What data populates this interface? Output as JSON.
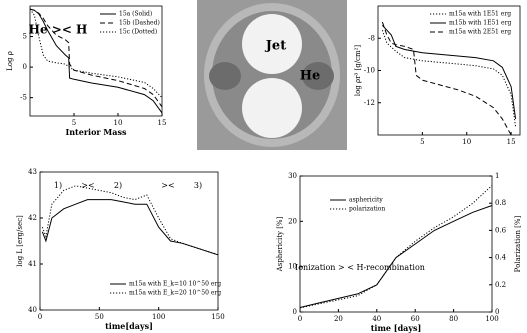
{
  "chart_data": [
    {
      "type": "line",
      "x_label": "Interior Mass",
      "y_label": "Log ρ",
      "xlim": [
        0,
        15
      ],
      "xticks": [
        5,
        10,
        15
      ],
      "ylim": [
        -8,
        10
      ],
      "yticks": [
        -5,
        0,
        5
      ],
      "annotations": [
        "He >< H"
      ],
      "series": [
        {
          "name": "15a (Solid)",
          "color": "#000000",
          "dash": "solid",
          "x": [
            0,
            0.5,
            1,
            1.5,
            2,
            3,
            4,
            4.4,
            4.5,
            5,
            7,
            10,
            13,
            14,
            15
          ],
          "values": [
            9.5,
            9.3,
            8.7,
            7.5,
            6,
            3.5,
            2,
            1.5,
            -1.8,
            -2,
            -2.6,
            -3.3,
            -4.5,
            -5.5,
            -7.5
          ]
        },
        {
          "name": "15b (Dashed)",
          "color": "#000000",
          "dash": "dashed",
          "x": [
            0,
            0.5,
            1,
            1.5,
            2,
            3,
            4,
            4.4,
            4.5,
            5,
            7,
            10,
            13,
            14,
            15
          ],
          "values": [
            9.5,
            9.3,
            8.8,
            8,
            6.8,
            5.2,
            4.5,
            4,
            0.5,
            -0.5,
            -1.3,
            -2.2,
            -3.5,
            -4.5,
            -6.5
          ]
        },
        {
          "name": "15c (Dotted)",
          "color": "#000000",
          "dash": "dotted",
          "x": [
            0,
            0.5,
            1,
            1.5,
            2,
            3,
            4,
            4.5,
            5,
            7,
            10,
            13,
            14,
            15
          ],
          "values": [
            9.5,
            8.5,
            5,
            2,
            1,
            0.7,
            0.5,
            0,
            -0.5,
            -1,
            -1.6,
            -2.5,
            -3.5,
            -5
          ]
        }
      ]
    },
    {
      "type": "line",
      "y_label": "log ρr³ [g/cm²]",
      "xlim": [
        0,
        16
      ],
      "xticks": [
        5,
        10,
        15
      ],
      "ylim": [
        -14,
        -6
      ],
      "yticks": [
        -12,
        -10,
        -8
      ],
      "series": [
        {
          "name": "m15a with 1E51 erg",
          "color": "#000000",
          "dash": "dotted",
          "x": [
            0.5,
            1,
            2,
            3,
            5,
            7,
            9,
            11,
            13,
            14,
            15,
            15.5
          ],
          "values": [
            -7.5,
            -8.3,
            -8.8,
            -9.2,
            -9.4,
            -9.5,
            -9.6,
            -9.7,
            -9.9,
            -10.3,
            -11.5,
            -13.5
          ]
        },
        {
          "name": "m15b with 1E51 erg",
          "color": "#000000",
          "dash": "solid",
          "x": [
            0.5,
            1,
            1.5,
            2,
            3,
            5,
            7,
            9,
            11,
            13,
            14,
            15,
            15.5
          ],
          "values": [
            -7.2,
            -7.5,
            -7.8,
            -8.5,
            -8.7,
            -8.9,
            -9,
            -9.1,
            -9.2,
            -9.4,
            -9.8,
            -11,
            -13
          ]
        },
        {
          "name": "m15a with 2E51 erg",
          "color": "#000000",
          "dash": "dashed",
          "x": [
            0.5,
            1,
            1.5,
            2,
            3,
            4,
            4.3,
            5,
            7,
            9,
            11,
            13,
            14,
            15
          ],
          "values": [
            -7,
            -7.8,
            -8.3,
            -8.4,
            -8.5,
            -8.7,
            -10.3,
            -10.6,
            -10.9,
            -11.2,
            -11.6,
            -12.3,
            -13,
            -14
          ]
        }
      ]
    },
    {
      "type": "line",
      "x_label": "time[days]",
      "y_label": "log L [erg/sec]",
      "xlim": [
        0,
        150
      ],
      "xticks": [
        0,
        50,
        100,
        150
      ],
      "ylim": [
        40,
        43
      ],
      "yticks": [
        40,
        41,
        42,
        43
      ],
      "annotations": [
        "1)",
        "><",
        "2)",
        "><",
        "3)"
      ],
      "series": [
        {
          "name": "m15a with E_k=10 10^50 erg",
          "color": "#000000",
          "dash": "solid",
          "x": [
            2,
            5,
            10,
            20,
            30,
            40,
            50,
            60,
            70,
            80,
            90,
            100,
            110,
            120,
            150
          ],
          "values": [
            41.7,
            41.5,
            42,
            42.2,
            42.3,
            42.4,
            42.4,
            42.4,
            42.35,
            42.3,
            42.3,
            41.8,
            41.5,
            41.45,
            41.2
          ]
        },
        {
          "name": "m15a with E_k=20 10^50 erg",
          "color": "#000000",
          "dash": "dotted",
          "x": [
            2,
            5,
            10,
            20,
            30,
            40,
            50,
            60,
            70,
            80,
            90,
            100,
            110,
            120,
            150
          ],
          "values": [
            41.8,
            41.6,
            42.3,
            42.6,
            42.7,
            42.65,
            42.6,
            42.55,
            42.45,
            42.4,
            42.5,
            42,
            41.55,
            41.45,
            41.2
          ]
        }
      ]
    },
    {
      "type": "line",
      "x_label": "time [days]",
      "y_label": "Asphericity [%]",
      "y2_label": "Polarization [%]",
      "xlim": [
        0,
        100
      ],
      "xticks": [
        0,
        20,
        40,
        60,
        80,
        100
      ],
      "ylim": [
        0,
        30
      ],
      "yticks": [
        0,
        10,
        20,
        30
      ],
      "y2lim": [
        0,
        1
      ],
      "y2ticks": [
        0,
        0.2,
        0.4,
        0.6,
        0.8,
        1
      ],
      "annotations": [
        "Ionization > < H-recombination"
      ],
      "series": [
        {
          "name": "asphericity",
          "color": "#000000",
          "dash": "solid",
          "x": [
            0,
            10,
            20,
            30,
            40,
            50,
            60,
            70,
            80,
            90,
            100
          ],
          "values": [
            1,
            2,
            3,
            4,
            6,
            12,
            15,
            18,
            20,
            22,
            23.5
          ]
        },
        {
          "name": "polarization",
          "color": "#000000",
          "dash": "dotted",
          "axis": "y2",
          "x": [
            0,
            10,
            20,
            30,
            40,
            50,
            60,
            70,
            80,
            90,
            100
          ],
          "values": [
            0.03,
            0.06,
            0.09,
            0.12,
            0.2,
            0.4,
            0.52,
            0.62,
            0.7,
            0.8,
            0.93
          ]
        }
      ]
    }
  ],
  "image": {
    "labels": [
      "Jet",
      "He"
    ]
  }
}
